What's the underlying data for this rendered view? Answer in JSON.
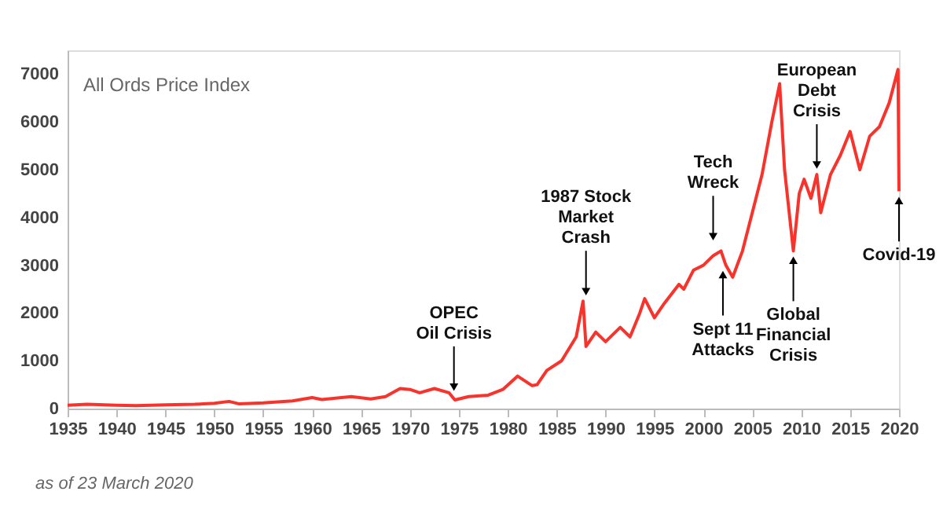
{
  "chart_data": {
    "type": "line",
    "x": [
      1935,
      1937,
      1940,
      1942,
      1945,
      1948,
      1950,
      1951.5,
      1952.5,
      1955,
      1958,
      1960,
      1961,
      1964,
      1966,
      1967.5,
      1969,
      1970,
      1971,
      1972.5,
      1974,
      1974.6,
      1976,
      1978,
      1979.5,
      1981,
      1982.5,
      1983,
      1984,
      1985.5,
      1987,
      1987.7,
      1988,
      1989,
      1990,
      1991.5,
      1992.5,
      1993.5,
      1994,
      1995,
      1996,
      1997.5,
      1998,
      1999,
      2000,
      2001,
      2001.8,
      2002.3,
      2003,
      2004,
      2005,
      2006,
      2007,
      2007.8,
      2008.3,
      2009.2,
      2009.8,
      2010.3,
      2011,
      2011.6,
      2012,
      2013,
      2014,
      2015,
      2015.5,
      2016,
      2017,
      2018,
      2019,
      2019.9,
      2020
    ],
    "series": [
      {
        "color": "#f8332b",
        "values": [
          70,
          90,
          70,
          60,
          80,
          90,
          110,
          150,
          100,
          120,
          160,
          230,
          190,
          250,
          200,
          250,
          420,
          400,
          330,
          420,
          330,
          180,
          250,
          280,
          400,
          680,
          480,
          500,
          800,
          1000,
          1500,
          2250,
          1300,
          1600,
          1400,
          1700,
          1500,
          2000,
          2300,
          1900,
          2200,
          2600,
          2500,
          2900,
          3000,
          3200,
          3300,
          3000,
          2750,
          3300,
          4100,
          4900,
          6000,
          6800,
          5000,
          3300,
          4500,
          4800,
          4400,
          4900,
          4100,
          4900,
          5300,
          5800,
          5400,
          5000,
          5700,
          5900,
          6400,
          7100,
          4550
        ]
      }
    ],
    "xlim": [
      1935,
      2020
    ],
    "xticks": [
      1935,
      1940,
      1945,
      1950,
      1955,
      1960,
      1965,
      1970,
      1975,
      1980,
      1985,
      1990,
      1995,
      2000,
      2005,
      2010,
      2015,
      2020
    ],
    "ylim": [
      0,
      7500
    ],
    "yticks": [
      0,
      1000,
      2000,
      3000,
      4000,
      5000,
      6000,
      7000
    ],
    "grid": false,
    "marker": "none",
    "line_style": "solid",
    "annotations": [
      "All Ords Price Index",
      {
        "text": "OPEC\nOil Crisis",
        "x": 1974.5,
        "y": 250
      },
      {
        "text": "1987 Stock\nMarket\nCrash",
        "x": 1988,
        "y": 2250
      },
      {
        "text": "Tech\nWreck",
        "x": 2001,
        "y": 3400
      },
      {
        "text": "Sept 11\nAttacks",
        "x": 2002,
        "y": 3000
      },
      {
        "text": "Global\nFinancial\nCrisis",
        "x": 2009.2,
        "y": 3300
      },
      {
        "text": "European\nDebt\nCrisis",
        "x": 2011.6,
        "y": 4900
      },
      {
        "text": "Covid-19",
        "x": 2020,
        "y": 4550
      },
      "as of 23 March 2020"
    ]
  }
}
